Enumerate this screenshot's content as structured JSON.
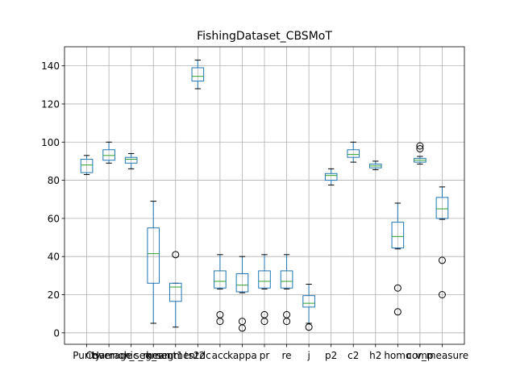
{
  "chart_data": {
    "type": "box",
    "title": "FishingDataset_CBSMoT",
    "xlabel": "",
    "ylabel": "",
    "ylim": [
      -6,
      150
    ],
    "yticks": [
      0,
      20,
      40,
      60,
      80,
      100,
      120,
      140
    ],
    "grid": true,
    "colors": {
      "box": "#1f77b4",
      "median": "#2ca02c",
      "outlier": "#000000",
      "grid": "#b0b0b0",
      "axis": "#000000"
    },
    "categories": [
      "Purity",
      "Coverage",
      "Harmonic_mean",
      "k_segment1",
      "k_segment2",
      "ts2dc",
      "acc",
      "kappa",
      "pr",
      "re",
      "j",
      "p2",
      "c2",
      "h2",
      "homo",
      "comp",
      "v_measure"
    ],
    "tick_labels": [
      "Purity",
      "Coverage",
      "Harmonic_mean",
      "k_segment1",
      "k_segment2",
      "ts2dc",
      "acc",
      "kappa",
      "pr",
      "re",
      "j",
      "p2",
      "c2",
      "h2",
      "homo",
      "comp",
      "v_measure"
    ],
    "boxes": [
      {
        "name": "Purity",
        "whislo": 83,
        "q1": 84,
        "med": 88,
        "q3": 91,
        "whishi": 93,
        "fliers": []
      },
      {
        "name": "Coverage",
        "whislo": 89,
        "q1": 90.5,
        "med": 93,
        "q3": 96,
        "whishi": 100,
        "fliers": []
      },
      {
        "name": "Harmonic_mean",
        "whislo": 86,
        "q1": 89,
        "med": 91,
        "q3": 92,
        "whishi": 94,
        "fliers": []
      },
      {
        "name": "k_segment1",
        "whislo": 5,
        "q1": 26,
        "med": 41.5,
        "q3": 55,
        "whishi": 69,
        "fliers": []
      },
      {
        "name": "k_segment2",
        "whislo": 3,
        "q1": 16.5,
        "med": 24,
        "q3": 26,
        "whishi": 26,
        "fliers": [
          41
        ]
      },
      {
        "name": "ts2dc",
        "whislo": 128,
        "q1": 132,
        "med": 134.5,
        "q3": 139,
        "whishi": 143,
        "fliers": []
      },
      {
        "name": "acc",
        "whislo": 23,
        "q1": 23.5,
        "med": 27,
        "q3": 32.5,
        "whishi": 41,
        "fliers": [
          9.5,
          6
        ]
      },
      {
        "name": "kappa",
        "whislo": 21,
        "q1": 21.5,
        "med": 25,
        "q3": 31,
        "whishi": 40,
        "fliers": [
          6,
          2.5
        ]
      },
      {
        "name": "pr",
        "whislo": 23,
        "q1": 23.5,
        "med": 27,
        "q3": 32.5,
        "whishi": 41,
        "fliers": [
          9.5,
          6
        ]
      },
      {
        "name": "re",
        "whislo": 23,
        "q1": 23.5,
        "med": 27,
        "q3": 32.5,
        "whishi": 41,
        "fliers": [
          9.5,
          6
        ]
      },
      {
        "name": "j",
        "whislo": 5,
        "q1": 13.5,
        "med": 15.5,
        "q3": 19.5,
        "whishi": 25.5,
        "fliers": [
          3
        ]
      },
      {
        "name": "p2",
        "whislo": 77.5,
        "q1": 80,
        "med": 82.5,
        "q3": 83.5,
        "whishi": 86,
        "fliers": []
      },
      {
        "name": "c2",
        "whislo": 89.5,
        "q1": 92,
        "med": 93.5,
        "q3": 96,
        "whishi": 100,
        "fliers": []
      },
      {
        "name": "h2",
        "whislo": 85.5,
        "q1": 86.5,
        "med": 87.5,
        "q3": 88.5,
        "whishi": 90,
        "fliers": []
      },
      {
        "name": "homo",
        "whislo": 44,
        "q1": 44.5,
        "med": 50.5,
        "q3": 58,
        "whishi": 68,
        "fliers": [
          23.5,
          11
        ]
      },
      {
        "name": "comp",
        "whislo": 88.5,
        "q1": 89.5,
        "med": 90.5,
        "q3": 91.5,
        "whishi": 92.5,
        "fliers": [
          98,
          96.5
        ]
      },
      {
        "name": "v_measure",
        "whislo": 59.5,
        "q1": 60,
        "med": 65,
        "q3": 71,
        "whishi": 76.5,
        "fliers": [
          38,
          20
        ]
      }
    ]
  }
}
